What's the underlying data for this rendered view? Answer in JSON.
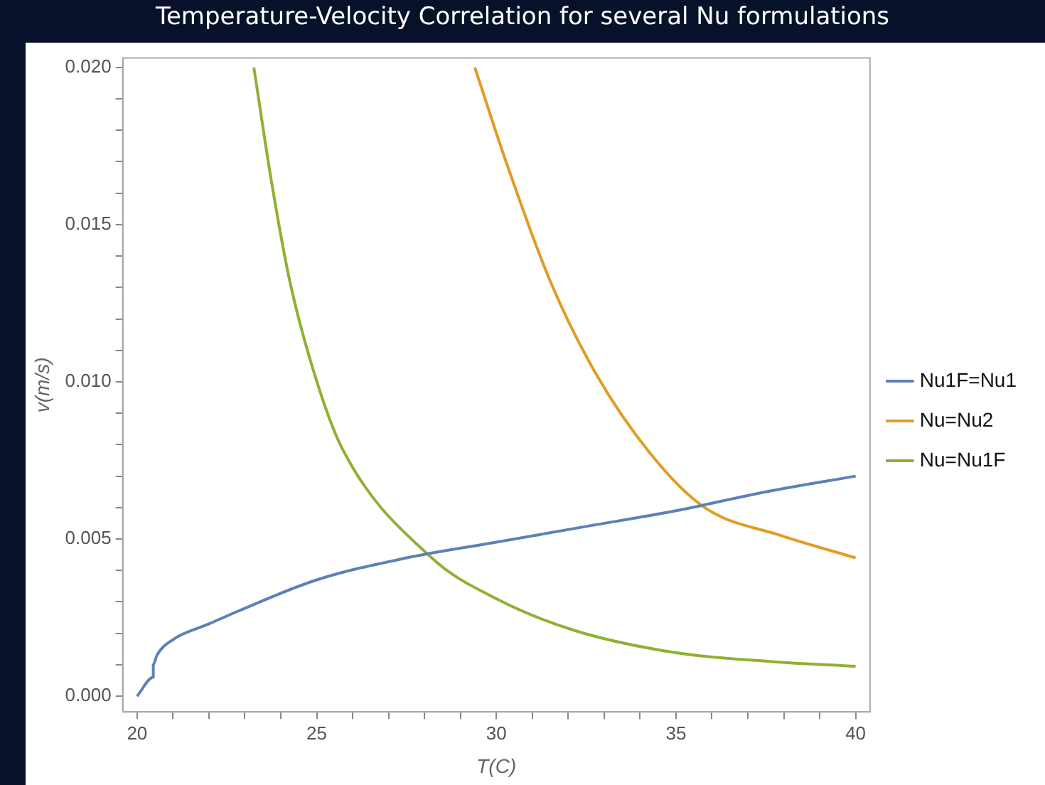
{
  "chart_data": {
    "type": "line",
    "title": "Temperature-Velocity Correlation for several Nu formulations",
    "xlabel": "T(C)",
    "ylabel": "v(m/s)",
    "xlim": [
      19.6,
      40.4
    ],
    "ylim": [
      -0.0005,
      0.0203
    ],
    "xticks": [
      20,
      {
        "value": 21,
        "label": null
      },
      {
        "value": 22,
        "label": null
      },
      {
        "value": 23,
        "label": null
      },
      {
        "value": 24,
        "label": null
      },
      25,
      {
        "value": 26,
        "label": null
      },
      {
        "value": 27,
        "label": null
      },
      {
        "value": 28,
        "label": null
      },
      {
        "value": 29,
        "label": null
      },
      30,
      {
        "value": 31,
        "label": null
      },
      {
        "value": 32,
        "label": null
      },
      {
        "value": 33,
        "label": null
      },
      {
        "value": 34,
        "label": null
      },
      35,
      {
        "value": 36,
        "label": null
      },
      {
        "value": 37,
        "label": null
      },
      {
        "value": 38,
        "label": null
      },
      {
        "value": 39,
        "label": null
      },
      40
    ],
    "yticks": [
      {
        "value": 0,
        "label": "0.000"
      },
      {
        "value": 0.001,
        "label": null
      },
      {
        "value": 0.002,
        "label": null
      },
      {
        "value": 0.003,
        "label": null
      },
      {
        "value": 0.004,
        "label": null
      },
      {
        "value": 0.005,
        "label": "0.005"
      },
      {
        "value": 0.006,
        "label": null
      },
      {
        "value": 0.007,
        "label": null
      },
      {
        "value": 0.008,
        "label": null
      },
      {
        "value": 0.009,
        "label": null
      },
      {
        "value": 0.01,
        "label": "0.010"
      },
      {
        "value": 0.011,
        "label": null
      },
      {
        "value": 0.012,
        "label": null
      },
      {
        "value": 0.013,
        "label": null
      },
      {
        "value": 0.014,
        "label": null
      },
      {
        "value": 0.015,
        "label": "0.015"
      },
      {
        "value": 0.016,
        "label": null
      },
      {
        "value": 0.017,
        "label": null
      },
      {
        "value": 0.018,
        "label": null
      },
      {
        "value": 0.019,
        "label": null
      },
      {
        "value": 0.02,
        "label": "0.020"
      }
    ],
    "legend": "right",
    "marker": "none",
    "line_style": "solid",
    "series": [
      {
        "name": "Nu1F=Nu1",
        "color": "#5e81b5",
        "x": [
          20,
          20.45,
          20.45,
          20.55,
          21,
          22,
          22.8,
          25,
          27.5,
          30,
          32.5,
          35,
          37.5,
          40
        ],
        "values": [
          0,
          0.0006,
          0.001,
          0.0013,
          0.0018,
          0.0023,
          0.0027,
          0.0037,
          0.0044,
          0.0049,
          0.0054,
          0.0059,
          0.0065,
          0.007
        ]
      },
      {
        "name": "Nu=Nu2",
        "color": "#e19c24",
        "x": [
          29.4,
          30.3,
          31.5,
          32.75,
          34.3,
          35.8,
          37.95,
          40
        ],
        "values": [
          0.02,
          0.0169,
          0.0132,
          0.0103,
          0.0077,
          0.006,
          0.0051,
          0.0044
        ]
      },
      {
        "name": "Nu=Nu1F",
        "color": "#8fb032",
        "x": [
          23.25,
          23.75,
          24.25,
          24.95,
          25.7,
          28.2,
          30,
          32.15,
          34.9,
          37.65,
          40
        ],
        "values": [
          0.02,
          0.0163,
          0.0132,
          0.0102,
          0.0079,
          0.0044,
          0.0031,
          0.0021,
          0.0014,
          0.0011,
          0.00095
        ]
      }
    ]
  }
}
